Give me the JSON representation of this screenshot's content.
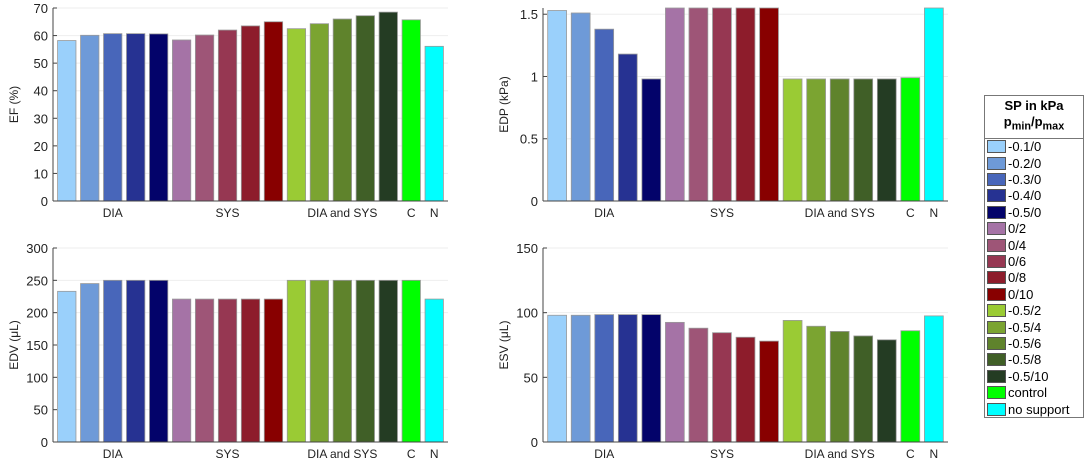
{
  "legend": {
    "title": "SP in kPa",
    "subtitle_main": "p",
    "subtitle_min": "min",
    "subtitle_sep": "/p",
    "subtitle_max": "max",
    "entries": [
      "-0.1/0",
      "-0.2/0",
      "-0.3/0",
      "-0.4/0",
      "-0.5/0",
      "0/2",
      "0/4",
      "0/6",
      "0/8",
      "0/10",
      "-0.5/2",
      "-0.5/4",
      "-0.5/6",
      "-0.5/8",
      "-0.5/10",
      "control",
      "no support"
    ],
    "colors": [
      "#9ad0fb",
      "#6e9ad8",
      "#4866ba",
      "#263292",
      "#03036a",
      "#a573a6",
      "#9e5577",
      "#963752",
      "#8d1c2b",
      "#880000",
      "#9acb34",
      "#7ba431",
      "#5f832c",
      "#405f27",
      "#243c23",
      "#00ff00",
      "#00ffff"
    ]
  },
  "chart_data": [
    {
      "type": "bar",
      "ylabel": "EF (%)",
      "ylim": [
        0,
        70
      ],
      "yticks": [
        "0",
        "10",
        "20",
        "30",
        "40",
        "50",
        "60",
        "70"
      ],
      "ytickvals": [
        0,
        10,
        20,
        30,
        40,
        50,
        60,
        70
      ],
      "groups": [
        {
          "label": "DIA",
          "center": 3
        },
        {
          "label": "SYS",
          "center": 8
        },
        {
          "label": "DIA and SYS",
          "center": 13
        },
        {
          "label": "C",
          "center": 16
        },
        {
          "label": "N",
          "center": 17
        }
      ],
      "values": [
        58.2,
        60.1,
        60.7,
        60.7,
        60.6,
        58.4,
        60.2,
        62.0,
        63.5,
        65.0,
        62.5,
        64.3,
        66.0,
        67.2,
        68.5,
        65.7,
        56.1
      ]
    },
    {
      "type": "bar",
      "ylabel": "EDP (kPa)",
      "ylim": [
        0,
        1.55
      ],
      "yticks": [
        "0",
        "0.5",
        "1",
        "1.5"
      ],
      "ytickvals": [
        0,
        0.5,
        1,
        1.5
      ],
      "groups": [
        {
          "label": "DIA",
          "center": 3
        },
        {
          "label": "SYS",
          "center": 8
        },
        {
          "label": "DIA and SYS",
          "center": 13
        },
        {
          "label": "C",
          "center": 16
        },
        {
          "label": "N",
          "center": 17
        }
      ],
      "values": [
        1.53,
        1.51,
        1.38,
        1.18,
        0.98,
        1.55,
        1.55,
        1.55,
        1.55,
        1.55,
        0.98,
        0.98,
        0.98,
        0.98,
        0.98,
        0.99,
        1.55
      ]
    },
    {
      "type": "bar",
      "ylabel": "EDV (μL)",
      "ylim": [
        0,
        300
      ],
      "yticks": [
        "0",
        "50",
        "100",
        "150",
        "200",
        "250",
        "300"
      ],
      "ytickvals": [
        0,
        50,
        100,
        150,
        200,
        250,
        300
      ],
      "groups": [
        {
          "label": "DIA",
          "center": 3
        },
        {
          "label": "SYS",
          "center": 8
        },
        {
          "label": "DIA and SYS",
          "center": 13
        },
        {
          "label": "C",
          "center": 16
        },
        {
          "label": "N",
          "center": 17
        }
      ],
      "values": [
        233,
        245,
        250,
        250,
        250,
        221,
        221,
        221,
        221,
        221,
        250,
        250,
        250,
        250,
        250,
        250,
        221
      ]
    },
    {
      "type": "bar",
      "ylabel": "ESV (μL)",
      "ylim": [
        0,
        150
      ],
      "yticks": [
        "0",
        "50",
        "100",
        "150"
      ],
      "ytickvals": [
        0,
        50,
        100,
        150
      ],
      "groups": [
        {
          "label": "DIA",
          "center": 3
        },
        {
          "label": "SYS",
          "center": 8
        },
        {
          "label": "DIA and SYS",
          "center": 13
        },
        {
          "label": "C",
          "center": 16
        },
        {
          "label": "N",
          "center": 17
        }
      ],
      "values": [
        98,
        98,
        98.5,
        98.5,
        98.5,
        92.5,
        88,
        84.5,
        81,
        78,
        94,
        89.5,
        85.5,
        82,
        79,
        86,
        97.5
      ]
    }
  ]
}
